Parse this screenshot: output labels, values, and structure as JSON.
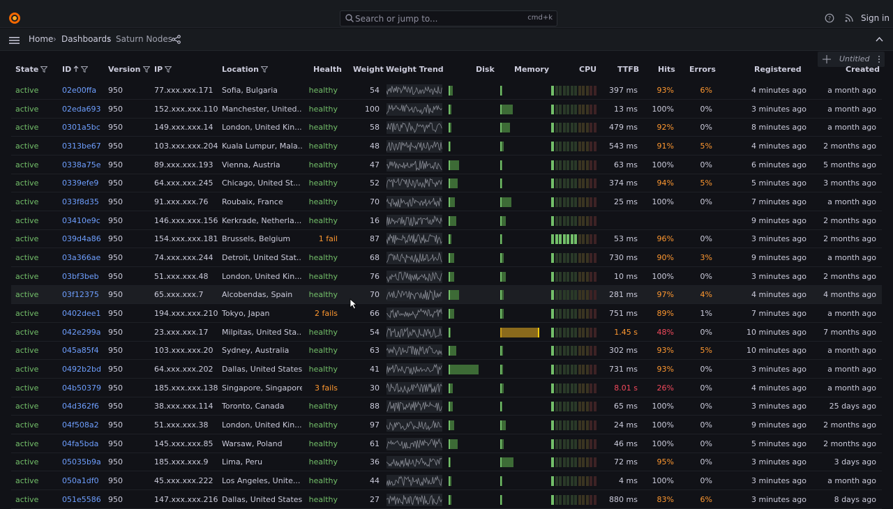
{
  "header": {
    "search_placeholder": "Search or jump to...",
    "search_shortcut": "cmd+k",
    "sign_in": "Sign in"
  },
  "breadcrumb": {
    "home": "Home",
    "dashboards": "Dashboards",
    "current": "Saturn Nodes",
    "sep": "›"
  },
  "panel": {
    "title": "Untitled"
  },
  "columns": {
    "state": "State",
    "id": "ID",
    "version": "Version",
    "ip": "IP",
    "location": "Location",
    "health": "Health",
    "weight": "Weight",
    "trend": "Weight Trend",
    "disk": "Disk",
    "memory": "Memory",
    "cpu": "CPU",
    "ttfb": "TTFB",
    "hits": "Hits",
    "errors": "Errors",
    "registered": "Registered",
    "created": "Created"
  },
  "rows": [
    {
      "state": "active",
      "id": "02e00ffa",
      "version": "950",
      "ip": "77.xxx.xxx.171",
      "location": "Sofia, Bulgaria",
      "health": "healthy",
      "weight": "54",
      "disk": 0.08,
      "memory": 0.03,
      "cpu": 0.08,
      "ttfb": "397 ms",
      "hits": "93%",
      "errors": "6%",
      "registered": "4 minutes ago",
      "created": "a month ago"
    },
    {
      "state": "active",
      "id": "02eda693",
      "version": "950",
      "ip": "152.xxx.xxx.110",
      "location": "Manchester, United...",
      "health": "healthy",
      "weight": "100",
      "disk": 0.05,
      "memory": 0.28,
      "cpu": 0.08,
      "ttfb": "13 ms",
      "hits": "100%",
      "errors": "0%",
      "registered": "3 minutes ago",
      "created": "a month ago"
    },
    {
      "state": "active",
      "id": "0301a5bc",
      "version": "950",
      "ip": "149.xxx.xxx.14",
      "location": "London, United Kin...",
      "health": "healthy",
      "weight": "58",
      "disk": 0.06,
      "memory": 0.22,
      "cpu": 0.08,
      "ttfb": "479 ms",
      "hits": "92%",
      "errors": "0%",
      "registered": "8 minutes ago",
      "created": "a month ago"
    },
    {
      "state": "active",
      "id": "0313be67",
      "version": "950",
      "ip": "103.xxx.xxx.204",
      "location": "Kuala Lumpur, Mala...",
      "health": "healthy",
      "weight": "48",
      "disk": 0.04,
      "memory": 0.08,
      "cpu": 0.08,
      "ttfb": "543 ms",
      "hits": "91%",
      "errors": "5%",
      "registered": "4 minutes ago",
      "created": "2 months ago"
    },
    {
      "state": "active",
      "id": "0338a75e",
      "version": "950",
      "ip": "89.xxx.xxx.193",
      "location": "Vienna, Austria",
      "health": "healthy",
      "weight": "47",
      "disk": 0.22,
      "memory": 0.03,
      "cpu": 0.08,
      "ttfb": "63 ms",
      "hits": "100%",
      "errors": "0%",
      "registered": "6 minutes ago",
      "created": "5 months ago"
    },
    {
      "state": "active",
      "id": "0339efe9",
      "version": "950",
      "ip": "64.xxx.xxx.245",
      "location": "Chicago, United St...",
      "health": "healthy",
      "weight": "52",
      "disk": 0.19,
      "memory": 0.03,
      "cpu": 0.08,
      "ttfb": "374 ms",
      "hits": "94%",
      "errors": "5%",
      "registered": "5 minutes ago",
      "created": "3 months ago"
    },
    {
      "state": "active",
      "id": "033f8d35",
      "version": "950",
      "ip": "91.xxx.xxx.76",
      "location": "Roubaix, France",
      "health": "healthy",
      "weight": "70",
      "disk": 0.13,
      "memory": 0.25,
      "cpu": 0.08,
      "ttfb": "25 ms",
      "hits": "100%",
      "errors": "0%",
      "registered": "7 minutes ago",
      "created": "a month ago"
    },
    {
      "state": "active",
      "id": "03410e9c",
      "version": "950",
      "ip": "146.xxx.xxx.156",
      "location": "Kerkrade, Netherla...",
      "health": "healthy",
      "weight": "16",
      "disk": 0.16,
      "memory": 0.12,
      "cpu": 0.08,
      "ttfb": "",
      "hits": "",
      "errors": "",
      "registered": "9 minutes ago",
      "created": "2 months ago"
    },
    {
      "state": "active",
      "id": "039d4a86",
      "version": "950",
      "ip": "154.xxx.xxx.181",
      "location": "Brussels, Belgium",
      "health": "1 fail",
      "weight": "87",
      "disk": 0.06,
      "memory": 0.03,
      "cpu": 0.55,
      "ttfb": "53 ms",
      "hits": "96%",
      "errors": "0%",
      "registered": "3 minutes ago",
      "created": "2 months ago"
    },
    {
      "state": "active",
      "id": "03a366ae",
      "version": "950",
      "ip": "74.xxx.xxx.244",
      "location": "Detroit, United Stat...",
      "health": "healthy",
      "weight": "68",
      "disk": 0.12,
      "memory": 0.08,
      "cpu": 0.08,
      "ttfb": "730 ms",
      "hits": "90%",
      "errors": "3%",
      "registered": "9 minutes ago",
      "created": "a month ago"
    },
    {
      "state": "active",
      "id": "03bf3beb",
      "version": "950",
      "ip": "51.xxx.xxx.48",
      "location": "London, United Kin...",
      "health": "healthy",
      "weight": "76",
      "disk": 0.12,
      "memory": 0.12,
      "cpu": 0.08,
      "ttfb": "10 ms",
      "hits": "100%",
      "errors": "0%",
      "registered": "3 minutes ago",
      "created": "2 months ago"
    },
    {
      "state": "active",
      "id": "03f12375",
      "version": "950",
      "ip": "65.xxx.xxx.7",
      "location": "Alcobendas, Spain",
      "health": "healthy",
      "weight": "70",
      "disk": 0.22,
      "memory": 0.08,
      "cpu": 0.08,
      "ttfb": "281 ms",
      "hits": "97%",
      "errors": "4%",
      "registered": "4 minutes ago",
      "created": "4 months ago"
    },
    {
      "state": "active",
      "id": "0402dee1",
      "version": "950",
      "ip": "194.xxx.xxx.210",
      "location": "Tokyo, Japan",
      "health": "2 fails",
      "weight": "66",
      "disk": 0.12,
      "memory": 0.08,
      "cpu": 0.08,
      "ttfb": "751 ms",
      "hits": "89%",
      "errors": "1%",
      "registered": "7 minutes ago",
      "created": "a month ago"
    },
    {
      "state": "active",
      "id": "042e299a",
      "version": "950",
      "ip": "23.xxx.xxx.17",
      "location": "Milpitas, United Sta...",
      "health": "healthy",
      "weight": "54",
      "disk": 0.03,
      "memory": 0.88,
      "cpu": 0.08,
      "ttfb": "1.45 s",
      "hits": "48%",
      "errors": "0%",
      "registered": "10 minutes ago",
      "created": "7 months ago"
    },
    {
      "state": "active",
      "id": "045a85f4",
      "version": "950",
      "ip": "103.xxx.xxx.20",
      "location": "Sydney, Australia",
      "health": "healthy",
      "weight": "63",
      "disk": 0.16,
      "memory": 0.06,
      "cpu": 0.08,
      "ttfb": "302 ms",
      "hits": "93%",
      "errors": "5%",
      "registered": "10 minutes ago",
      "created": "a month ago"
    },
    {
      "state": "active",
      "id": "0492b2bd",
      "version": "950",
      "ip": "64.xxx.xxx.202",
      "location": "Dallas, United States",
      "health": "healthy",
      "weight": "41",
      "disk": 0.62,
      "memory": 0.06,
      "cpu": 0.08,
      "ttfb": "731 ms",
      "hits": "93%",
      "errors": "0%",
      "registered": "3 minutes ago",
      "created": "a month ago"
    },
    {
      "state": "active",
      "id": "04b50379",
      "version": "950",
      "ip": "185.xxx.xxx.138",
      "location": "Singapore, Singapore",
      "health": "3 fails",
      "weight": "30",
      "disk": 0.08,
      "memory": 0.08,
      "cpu": 0.08,
      "ttfb": "8.01 s",
      "hits": "26%",
      "errors": "0%",
      "registered": "4 minutes ago",
      "created": "a month ago"
    },
    {
      "state": "active",
      "id": "04d362f6",
      "version": "950",
      "ip": "38.xxx.xxx.114",
      "location": "Toronto, Canada",
      "health": "healthy",
      "weight": "88",
      "disk": 0.08,
      "memory": 0.04,
      "cpu": 0.08,
      "ttfb": "65 ms",
      "hits": "100%",
      "errors": "0%",
      "registered": "3 minutes ago",
      "created": "25 days ago"
    },
    {
      "state": "active",
      "id": "04f508a2",
      "version": "950",
      "ip": "51.xxx.xxx.38",
      "location": "London, United Kin...",
      "health": "healthy",
      "weight": "97",
      "disk": 0.12,
      "memory": 0.12,
      "cpu": 0.08,
      "ttfb": "24 ms",
      "hits": "100%",
      "errors": "0%",
      "registered": "9 minutes ago",
      "created": "2 months ago"
    },
    {
      "state": "active",
      "id": "04fa5bda",
      "version": "950",
      "ip": "145.xxx.xxx.85",
      "location": "Warsaw, Poland",
      "health": "healthy",
      "weight": "61",
      "disk": 0.19,
      "memory": 0.08,
      "cpu": 0.08,
      "ttfb": "46 ms",
      "hits": "100%",
      "errors": "0%",
      "registered": "5 minutes ago",
      "created": "2 months ago"
    },
    {
      "state": "active",
      "id": "05035b9a",
      "version": "950",
      "ip": "185.xxx.xxx.9",
      "location": "Lima, Peru",
      "health": "healthy",
      "weight": "36",
      "disk": 0.03,
      "memory": 0.3,
      "cpu": 0.08,
      "ttfb": "72 ms",
      "hits": "95%",
      "errors": "0%",
      "registered": "3 minutes ago",
      "created": "3 days ago"
    },
    {
      "state": "active",
      "id": "050a1df0",
      "version": "950",
      "ip": "45.xxx.xxx.222",
      "location": "Los Angeles, Unite...",
      "health": "healthy",
      "weight": "44",
      "disk": 0.06,
      "memory": 0.03,
      "cpu": 0.08,
      "ttfb": "4 ms",
      "hits": "100%",
      "errors": "0%",
      "registered": "3 minutes ago",
      "created": "a month ago"
    },
    {
      "state": "active",
      "id": "051e5586",
      "version": "950",
      "ip": "147.xxx.xxx.216",
      "location": "Dallas, United States",
      "health": "healthy",
      "weight": "27",
      "disk": 0.06,
      "memory": 0.03,
      "cpu": 0.08,
      "ttfb": "880 ms",
      "hits": "83%",
      "errors": "6%",
      "registered": "3 minutes ago",
      "created": "8 days ago"
    }
  ],
  "colors": {
    "green": "#73bf69",
    "blue": "#6e9fff",
    "orange": "#ff9830",
    "red": "#f2495c",
    "yellow": "#f2cc0c"
  }
}
